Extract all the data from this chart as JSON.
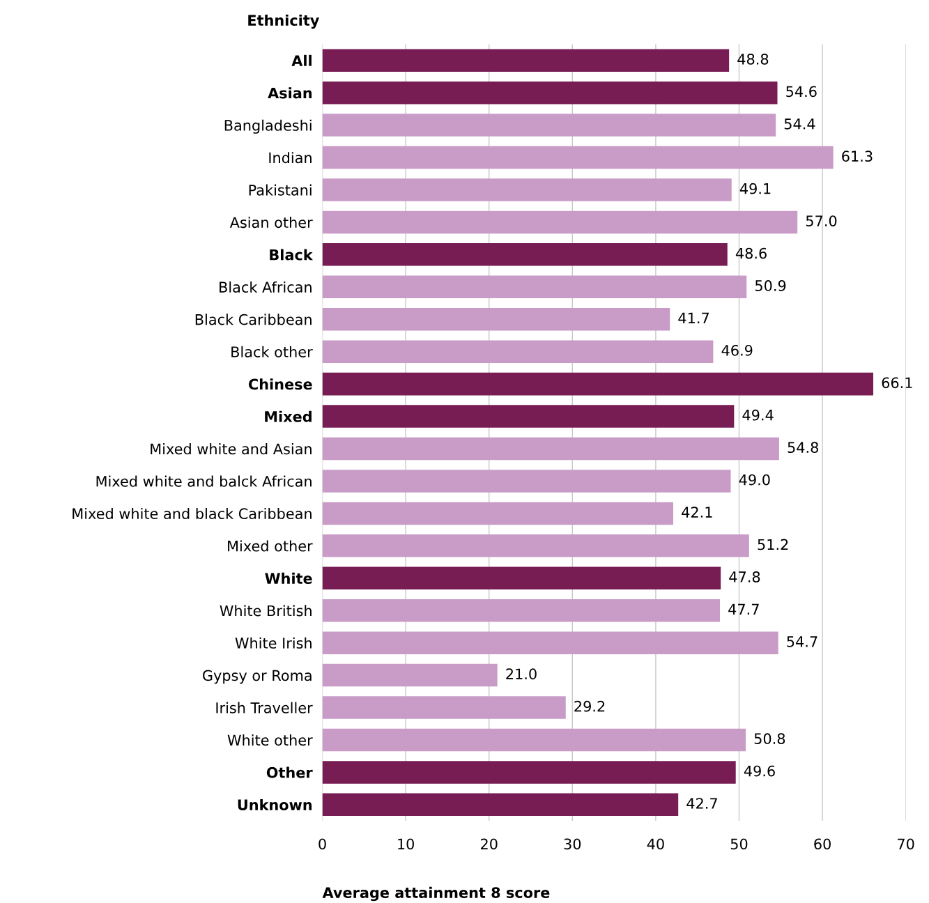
{
  "chart_data": {
    "type": "bar",
    "orientation": "horizontal",
    "ylabel": "Ethnicity",
    "xlabel": "Average attainment 8 score",
    "categories": [
      "All",
      "Asian",
      "Bangladeshi",
      "Indian",
      "Pakistani",
      "Asian other",
      "Black",
      "Black African",
      "Black Caribbean",
      "Black other",
      "Chinese",
      "Mixed",
      "Mixed white and Asian",
      "Mixed white and balck African",
      "Mixed white and black Caribbean",
      "Mixed other",
      "White",
      "White British",
      "White Irish",
      "Gypsy or Roma",
      "Irish Traveller",
      "White other",
      "Other",
      "Unknown"
    ],
    "values": [
      48.8,
      54.6,
      54.4,
      61.3,
      49.1,
      57.0,
      48.6,
      50.9,
      41.7,
      46.9,
      66.1,
      49.4,
      54.8,
      49.0,
      42.1,
      51.2,
      47.8,
      47.7,
      54.7,
      21.0,
      29.2,
      50.8,
      49.6,
      42.7
    ],
    "value_labels": [
      "48.8",
      "54.6",
      "54.4",
      "61.3",
      "49.1",
      "57.0",
      "48.6",
      "50.9",
      "41.7",
      "46.9",
      "66.1",
      "49.4",
      "54.8",
      "49.0",
      "42.1",
      "51.2",
      "47.8",
      "47.7",
      "54.7",
      "21.0",
      "29.2",
      "50.8",
      "49.6",
      "42.7"
    ],
    "colors": [
      "#781c54",
      "#781c54",
      "#c99cc8",
      "#c99cc8",
      "#c99cc8",
      "#c99cc8",
      "#781c54",
      "#c99cc8",
      "#c99cc8",
      "#c99cc8",
      "#781c54",
      "#781c54",
      "#c99cc8",
      "#c99cc8",
      "#c99cc8",
      "#c99cc8",
      "#781c54",
      "#c99cc8",
      "#c99cc8",
      "#c99cc8",
      "#c99cc8",
      "#c99cc8",
      "#781c54",
      "#781c54"
    ],
    "xlim": [
      0,
      70
    ],
    "xticks": [
      0,
      10,
      20,
      30,
      40,
      50,
      60,
      70
    ],
    "grid": "x",
    "legend": false
  }
}
